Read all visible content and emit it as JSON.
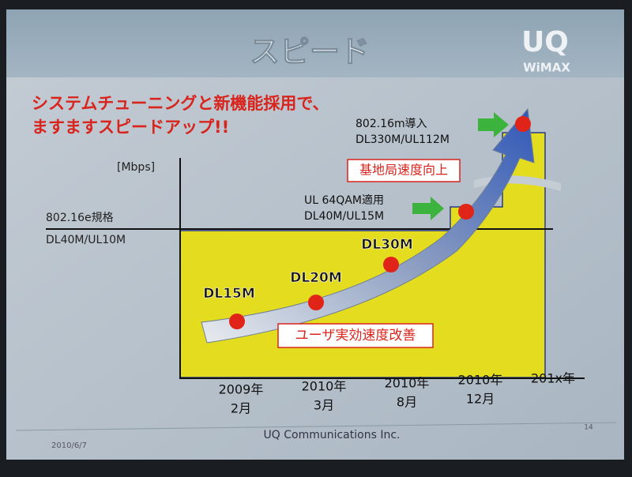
{
  "header": {
    "title": "スピード",
    "logo": {
      "brand": "UQ",
      "sub": "WiMAX"
    }
  },
  "headline": [
    "システムチューニングと新機能採用で、",
    "ますますスピードアップ!!"
  ],
  "diagram": {
    "y_unit": "[Mbps]",
    "baseline_label": [
      "802.16e規格",
      "DL40M/UL10M"
    ],
    "milestones": [
      {
        "label": [
          "DL15M"
        ]
      },
      {
        "label": [
          "DL20M"
        ]
      },
      {
        "label": [
          "DL30M"
        ]
      },
      {
        "label": [
          "UL 64QAM適用",
          "DL40M/UL15M"
        ]
      },
      {
        "label": [
          "802.16m導入",
          "DL330M/UL112M"
        ]
      }
    ],
    "callouts": [
      "基地局速度向上",
      "ユーザ実効速度改善"
    ],
    "x_labels": [
      [
        "2009年",
        "2月"
      ],
      [
        "2010年",
        "3月"
      ],
      [
        "2010年",
        "8月"
      ],
      [
        "2010年",
        "12月"
      ],
      [
        "201x年"
      ]
    ]
  },
  "footer": {
    "date": "2010/6/7",
    "company": "UQ Communications Inc.",
    "page": "14"
  }
}
